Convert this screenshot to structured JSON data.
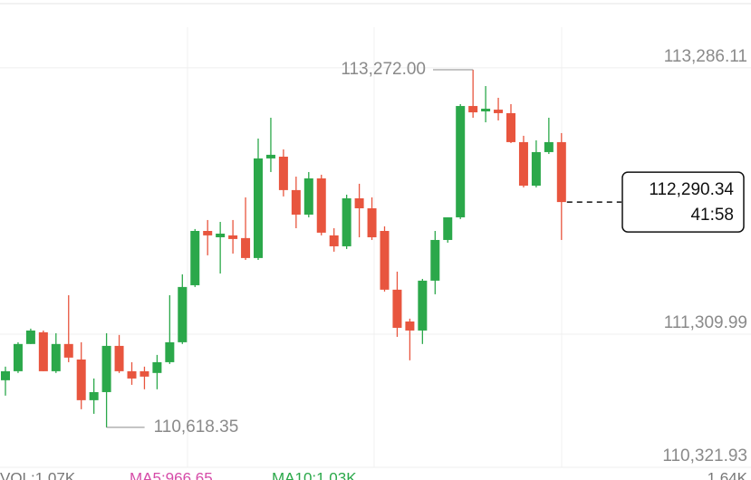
{
  "chart_data": {
    "type": "candlestick",
    "open": [
      110968,
      111035,
      111237,
      111324,
      111035,
      111237,
      111122,
      110820,
      110880,
      111223,
      111035,
      111035,
      111022,
      111102,
      111250,
      111673,
      112076,
      112029,
      112043,
      112023,
      111875,
      112614,
      112627,
      112379,
      112197,
      112466,
      112043,
      111962,
      112318,
      112244,
      112076,
      111640,
      111404,
      111337,
      111707,
      112009,
      112177,
      113003,
      112963,
      112976,
      112950,
      112735,
      112412,
      112661,
      112735
    ],
    "high": [
      111069,
      111250,
      111351,
      111337,
      111317,
      111599,
      111250,
      110981,
      111317,
      111304,
      111102,
      111069,
      111156,
      111599,
      111754,
      112090,
      112157,
      112143,
      112157,
      112325,
      112761,
      112916,
      112681,
      112479,
      112513,
      112493,
      112096,
      112345,
      112426,
      112325,
      112110,
      111774,
      111425,
      111720,
      112076,
      112177,
      113017,
      113272.0,
      113151,
      113064,
      113017,
      112782,
      112748,
      112916,
      112802
    ],
    "low": [
      110854,
      111022,
      111237,
      111035,
      111022,
      111102,
      110753,
      110719,
      110618.35,
      111022,
      110934,
      110901,
      110901,
      111089,
      111237,
      111660,
      111895,
      111760,
      111908,
      111861,
      111861,
      112513,
      112332,
      112096,
      112177,
      112043,
      111922,
      111942,
      112029,
      112009,
      111626,
      111290,
      111116,
      111237,
      111606,
      111989,
      112164,
      112916,
      112882,
      112896,
      112728,
      112399,
      112399,
      112647,
      112009
    ],
    "close": [
      111035,
      111237,
      111337,
      111035,
      111237,
      111136,
      110820,
      110880,
      111223,
      111035,
      110981,
      110995,
      111102,
      111250,
      111660,
      112076,
      112043,
      112056,
      112016,
      111875,
      112614,
      112641,
      112379,
      112197,
      112466,
      112063,
      111962,
      112318,
      112244,
      112029,
      111640,
      111357,
      111337,
      111707,
      112009,
      112177,
      113003,
      112956,
      112983,
      112950,
      112735,
      112412,
      112661,
      112735,
      112290.34
    ],
    "up_color": "#2ba84a",
    "down_color": "#e8553e",
    "ylim": [
      110321.93,
      113588
    ],
    "yticks": [
      {
        "value": 110321.93,
        "label": "110,321.93"
      },
      {
        "value": 111309.99,
        "label": "111,309.99"
      },
      {
        "value": 113286.11,
        "label": "113,286.11"
      }
    ],
    "grid": true,
    "max_annotation": {
      "value": 113272.0,
      "label": "113,272.00"
    },
    "min_annotation": {
      "value": 110618.35,
      "label": "110,618.35"
    },
    "current_price": {
      "value": 112290.34,
      "label": "112,290.34",
      "countdown": "41:58"
    },
    "indicators": {
      "vol": "VOL:1.07K",
      "ma5": "MA5:966.65",
      "ma10": "MA10:1.03K",
      "axis_max": "1.64K"
    }
  }
}
